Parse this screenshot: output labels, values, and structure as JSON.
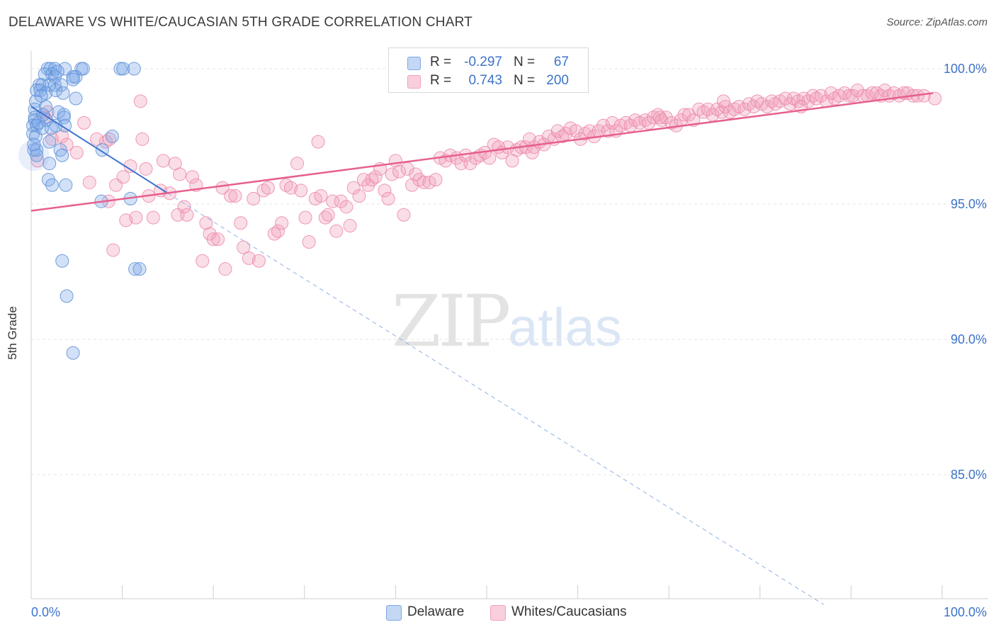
{
  "header": {
    "title": "DELAWARE VS WHITE/CAUCASIAN 5TH GRADE CORRELATION CHART",
    "source": "Source: ZipAtlas.com"
  },
  "watermark": {
    "zip": "ZIP",
    "atlas": "atlas"
  },
  "legend": {
    "rows": [
      {
        "r_label": "R =",
        "r_value": "-0.297",
        "n_label": "N =",
        "n_value": "67",
        "color": "#7fa8e8"
      },
      {
        "r_label": "R =",
        "r_value": "0.743",
        "n_label": "N =",
        "n_value": "200",
        "color": "#f2a0bb"
      }
    ]
  },
  "bottom_legend": [
    {
      "label": "Delaware",
      "color": "#7fa8e8"
    },
    {
      "label": "Whites/Caucasians",
      "color": "#f2a0bb"
    }
  ],
  "chart_data": {
    "type": "scatter",
    "title": "DELAWARE VS WHITE/CAUCASIAN 5TH GRADE CORRELATION CHART",
    "xlabel": "",
    "ylabel": "5th Grade",
    "xlim": [
      0,
      100
    ],
    "ylim": [
      80.5,
      100.5
    ],
    "x_tick_labels": [
      "0.0%",
      "100.0%"
    ],
    "y_ticks": [
      {
        "value": 100,
        "label": "100.0%"
      },
      {
        "value": 95,
        "label": "95.0%"
      },
      {
        "value": 90,
        "label": "90.0%"
      },
      {
        "value": 85,
        "label": "85.0%"
      }
    ],
    "grid": true,
    "series": [
      {
        "name": "Delaware",
        "color": "#7fa8e8",
        "stroke": "#5b8ed6",
        "trend": {
          "x0": 0,
          "y0": 98.6,
          "x1": 15,
          "y1": 95.4,
          "dashed_to_x": 87,
          "dashed_to_y": 80.2,
          "color": "#3f74cf"
        },
        "points": [
          [
            1.8,
            100
          ],
          [
            2.1,
            100
          ],
          [
            2.6,
            100
          ],
          [
            3.7,
            100
          ],
          [
            5.5,
            100
          ],
          [
            5.7,
            100
          ],
          [
            9.8,
            100
          ],
          [
            10.1,
            100
          ],
          [
            11.3,
            100
          ],
          [
            1.5,
            99.8
          ],
          [
            2.3,
            99.8
          ],
          [
            2.6,
            99.7
          ],
          [
            4.6,
            99.7
          ],
          [
            4.9,
            99.7
          ],
          [
            0.9,
            99.4
          ],
          [
            1.2,
            99.4
          ],
          [
            2.0,
            99.4
          ],
          [
            2.6,
            99.4
          ],
          [
            3.3,
            99.4
          ],
          [
            4.6,
            99.6
          ],
          [
            0.6,
            99.2
          ],
          [
            1.0,
            99.2
          ],
          [
            1.6,
            99.1
          ],
          [
            2.7,
            99.2
          ],
          [
            3.5,
            99.1
          ],
          [
            0.5,
            98.8
          ],
          [
            4.9,
            98.9
          ],
          [
            0.4,
            98.5
          ],
          [
            1.6,
            98.6
          ],
          [
            3.0,
            98.4
          ],
          [
            3.6,
            98.3
          ],
          [
            0.4,
            98.2
          ],
          [
            0.4,
            98.1
          ],
          [
            1.7,
            98.1
          ],
          [
            3.6,
            98.2
          ],
          [
            0.2,
            97.9
          ],
          [
            0.6,
            97.9
          ],
          [
            2.2,
            97.8
          ],
          [
            2.7,
            97.9
          ],
          [
            3.7,
            97.9
          ],
          [
            0.2,
            97.6
          ],
          [
            0.5,
            97.5
          ],
          [
            1.2,
            97.8
          ],
          [
            8.9,
            97.5
          ],
          [
            2.0,
            97.3
          ],
          [
            0.3,
            97.0
          ],
          [
            0.6,
            97.0
          ],
          [
            3.2,
            97.0
          ],
          [
            7.8,
            97.0
          ],
          [
            0.6,
            96.8
          ],
          [
            3.4,
            96.8
          ],
          [
            2.0,
            96.5
          ],
          [
            1.9,
            95.9
          ],
          [
            2.3,
            95.7
          ],
          [
            3.8,
            95.7
          ],
          [
            7.7,
            95.1
          ],
          [
            10.9,
            95.2
          ],
          [
            3.4,
            92.9
          ],
          [
            11.4,
            92.6
          ],
          [
            11.9,
            92.6
          ],
          [
            3.9,
            91.6
          ],
          [
            4.6,
            89.5
          ],
          [
            0.8,
            98.0
          ],
          [
            1.3,
            98.3
          ],
          [
            2.9,
            99.9
          ],
          [
            0.3,
            97.2
          ],
          [
            1.1,
            99.0
          ]
        ]
      },
      {
        "name": "Whites/Caucasians",
        "color": "#f2a0bb",
        "stroke": "#ec87a8",
        "trend": {
          "x0": 0,
          "y0": 94.75,
          "x1": 99,
          "y1": 99.1,
          "color": "#e6608d"
        },
        "points": [
          [
            0.7,
            96.6
          ],
          [
            1.8,
            98.4
          ],
          [
            2.3,
            97.4
          ],
          [
            3.4,
            97.5
          ],
          [
            5.0,
            96.9
          ],
          [
            5.8,
            98.0
          ],
          [
            6.4,
            95.8
          ],
          [
            7.2,
            97.4
          ],
          [
            8.2,
            97.3
          ],
          [
            8.6,
            97.4
          ],
          [
            8.5,
            95.1
          ],
          [
            9.0,
            93.3
          ],
          [
            9.3,
            95.7
          ],
          [
            10.1,
            96.0
          ],
          [
            10.4,
            94.4
          ],
          [
            10.9,
            96.4
          ],
          [
            11.5,
            94.5
          ],
          [
            12.2,
            97.4
          ],
          [
            12.6,
            96.3
          ],
          [
            12.9,
            95.3
          ],
          [
            13.4,
            94.5
          ],
          [
            14.2,
            95.5
          ],
          [
            14.5,
            96.6
          ],
          [
            15.2,
            95.4
          ],
          [
            15.8,
            96.5
          ],
          [
            16.1,
            94.6
          ],
          [
            16.3,
            96.1
          ],
          [
            16.8,
            94.9
          ],
          [
            17.1,
            94.6
          ],
          [
            17.7,
            96.0
          ],
          [
            18.1,
            95.7
          ],
          [
            18.8,
            92.9
          ],
          [
            19.2,
            94.3
          ],
          [
            19.6,
            93.9
          ],
          [
            20.0,
            93.7
          ],
          [
            20.5,
            93.7
          ],
          [
            21.0,
            95.6
          ],
          [
            21.3,
            92.6
          ],
          [
            21.9,
            95.3
          ],
          [
            22.4,
            95.3
          ],
          [
            23.0,
            94.3
          ],
          [
            23.3,
            93.4
          ],
          [
            23.9,
            93.0
          ],
          [
            24.4,
            95.2
          ],
          [
            25.0,
            92.9
          ],
          [
            25.5,
            95.5
          ],
          [
            26.0,
            95.6
          ],
          [
            26.7,
            93.9
          ],
          [
            27.1,
            94.0
          ],
          [
            27.5,
            94.3
          ],
          [
            28.0,
            95.7
          ],
          [
            28.5,
            95.6
          ],
          [
            29.2,
            96.5
          ],
          [
            29.6,
            95.5
          ],
          [
            30.1,
            94.5
          ],
          [
            30.5,
            93.6
          ],
          [
            31.2,
            95.2
          ],
          [
            31.8,
            95.3
          ],
          [
            32.3,
            94.5
          ],
          [
            32.6,
            94.6
          ],
          [
            33.1,
            95.1
          ],
          [
            33.5,
            94.0
          ],
          [
            34.0,
            95.1
          ],
          [
            34.6,
            94.9
          ],
          [
            35.0,
            94.2
          ],
          [
            35.4,
            95.6
          ],
          [
            36.0,
            95.3
          ],
          [
            36.5,
            95.9
          ],
          [
            37.0,
            95.7
          ],
          [
            37.4,
            95.9
          ],
          [
            37.8,
            96.0
          ],
          [
            38.3,
            96.3
          ],
          [
            38.8,
            95.5
          ],
          [
            39.2,
            95.2
          ],
          [
            39.6,
            96.1
          ],
          [
            40.0,
            96.6
          ],
          [
            40.4,
            96.2
          ],
          [
            40.9,
            94.6
          ],
          [
            41.3,
            96.3
          ],
          [
            41.8,
            95.7
          ],
          [
            42.2,
            96.1
          ],
          [
            42.6,
            95.9
          ],
          [
            43.1,
            95.8
          ],
          [
            43.7,
            95.8
          ],
          [
            44.4,
            95.9
          ],
          [
            44.9,
            96.7
          ],
          [
            45.5,
            96.6
          ],
          [
            46.0,
            96.8
          ],
          [
            46.7,
            96.7
          ],
          [
            47.2,
            96.5
          ],
          [
            47.7,
            96.8
          ],
          [
            48.2,
            96.5
          ],
          [
            48.8,
            96.7
          ],
          [
            49.3,
            96.8
          ],
          [
            49.8,
            96.9
          ],
          [
            50.3,
            96.7
          ],
          [
            50.8,
            97.2
          ],
          [
            51.3,
            97.1
          ],
          [
            51.7,
            96.9
          ],
          [
            52.3,
            97.1
          ],
          [
            52.8,
            96.6
          ],
          [
            53.3,
            97.0
          ],
          [
            53.8,
            97.1
          ],
          [
            54.3,
            97.1
          ],
          [
            54.7,
            97.4
          ],
          [
            55.2,
            97.1
          ],
          [
            55.8,
            97.3
          ],
          [
            56.3,
            97.2
          ],
          [
            56.8,
            97.5
          ],
          [
            57.4,
            97.4
          ],
          [
            57.8,
            97.7
          ],
          [
            58.3,
            97.5
          ],
          [
            58.7,
            97.6
          ],
          [
            59.2,
            97.8
          ],
          [
            59.8,
            97.7
          ],
          [
            60.3,
            97.4
          ],
          [
            60.8,
            97.6
          ],
          [
            61.3,
            97.7
          ],
          [
            61.8,
            97.5
          ],
          [
            62.3,
            97.7
          ],
          [
            62.8,
            97.9
          ],
          [
            63.3,
            97.7
          ],
          [
            63.8,
            98.0
          ],
          [
            64.2,
            97.7
          ],
          [
            64.7,
            97.9
          ],
          [
            65.3,
            98.0
          ],
          [
            65.8,
            97.9
          ],
          [
            66.3,
            98.1
          ],
          [
            66.8,
            98.0
          ],
          [
            67.4,
            98.1
          ],
          [
            67.8,
            98.0
          ],
          [
            68.3,
            98.2
          ],
          [
            68.8,
            98.3
          ],
          [
            69.2,
            98.1
          ],
          [
            69.7,
            98.2
          ],
          [
            70.3,
            98.0
          ],
          [
            70.8,
            97.9
          ],
          [
            71.3,
            98.1
          ],
          [
            71.7,
            98.3
          ],
          [
            72.2,
            98.3
          ],
          [
            72.7,
            98.1
          ],
          [
            73.3,
            98.5
          ],
          [
            73.8,
            98.4
          ],
          [
            74.3,
            98.5
          ],
          [
            74.8,
            98.3
          ],
          [
            75.3,
            98.5
          ],
          [
            75.8,
            98.4
          ],
          [
            76.2,
            98.6
          ],
          [
            76.7,
            98.4
          ],
          [
            77.2,
            98.5
          ],
          [
            77.7,
            98.6
          ],
          [
            78.3,
            98.5
          ],
          [
            78.8,
            98.7
          ],
          [
            79.3,
            98.6
          ],
          [
            79.7,
            98.8
          ],
          [
            80.2,
            98.7
          ],
          [
            80.8,
            98.6
          ],
          [
            81.3,
            98.8
          ],
          [
            81.7,
            98.7
          ],
          [
            82.2,
            98.8
          ],
          [
            82.8,
            98.9
          ],
          [
            83.3,
            98.7
          ],
          [
            83.7,
            98.9
          ],
          [
            84.2,
            98.8
          ],
          [
            84.8,
            98.9
          ],
          [
            85.3,
            98.8
          ],
          [
            85.8,
            99.0
          ],
          [
            86.2,
            98.9
          ],
          [
            86.7,
            99.0
          ],
          [
            87.3,
            98.8
          ],
          [
            87.8,
            99.1
          ],
          [
            88.2,
            98.9
          ],
          [
            88.7,
            99.0
          ],
          [
            89.3,
            99.1
          ],
          [
            89.8,
            99.0
          ],
          [
            90.2,
            99.0
          ],
          [
            90.7,
            99.2
          ],
          [
            91.3,
            99.0
          ],
          [
            91.8,
            99.0
          ],
          [
            92.3,
            99.1
          ],
          [
            92.8,
            99.1
          ],
          [
            93.3,
            99.0
          ],
          [
            93.7,
            99.2
          ],
          [
            94.2,
            99.0
          ],
          [
            94.7,
            99.1
          ],
          [
            95.3,
            99.0
          ],
          [
            95.8,
            99.1
          ],
          [
            96.2,
            99.1
          ],
          [
            96.8,
            99.0
          ],
          [
            97.3,
            99.0
          ],
          [
            1.5,
            98.2
          ],
          [
            3.9,
            97.2
          ],
          [
            12.0,
            98.8
          ],
          [
            31.5,
            97.3
          ],
          [
            55.0,
            96.9
          ],
          [
            69.0,
            98.2
          ],
          [
            76.0,
            98.8
          ],
          [
            84.5,
            98.6
          ],
          [
            98.0,
            99.0
          ],
          [
            99.2,
            98.9
          ]
        ]
      }
    ]
  }
}
